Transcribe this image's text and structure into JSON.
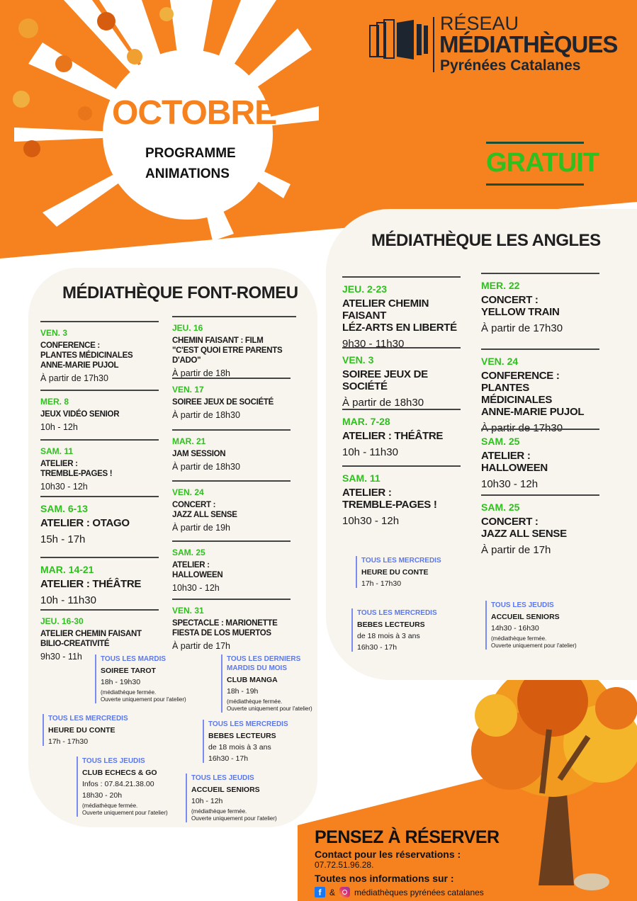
{
  "colors": {
    "orange": "#f5821f",
    "green": "#2fbf1f",
    "blue": "#5a78f0",
    "cream": "#f8f4ee",
    "dark": "#1c2530"
  },
  "logo": {
    "line1": "RÉSEAU",
    "line2": "MÉDIATHÈQUES",
    "line3": "Pyrénées Catalanes"
  },
  "header": {
    "month": "OCTOBRE",
    "subtitle": "PROGRAMME\nANIMATIONS",
    "free": "GRATUIT"
  },
  "font_romeu": {
    "title": "MÉDIATHÈQUE FONT-ROMEU",
    "events": [
      {
        "date": "VEN. 3",
        "title": "CONFERENCE :\nPLANTES MÉDICINALES\nANNE-MARIE PUJOL",
        "time": "À partir de 17h30"
      },
      {
        "date": "MER. 8",
        "title": "JEUX VIDÉO SENIOR",
        "time": "10h - 12h"
      },
      {
        "date": "SAM. 11",
        "title": "ATELIER :\nTREMBLE-PAGES !",
        "time": "10h30 - 12h"
      },
      {
        "date": "SAM. 6-13",
        "title": "ATELIER : OTAGO",
        "time": "15h - 17h"
      },
      {
        "date": "MAR. 14-21",
        "title": "ATELIER : THÉÂTRE",
        "time": "10h - 11h30"
      },
      {
        "date": "JEU. 16-30",
        "title": "ATELIER CHEMIN FAISANT\nBILIO-CREATIVITÉ",
        "time": "9h30 - 11h"
      },
      {
        "date": "JEU. 16",
        "title": "CHEMIN FAISANT : FILM\n\"C'EST QUOI ETRE PARENTS D'ADO\"",
        "time": "À partir de 18h"
      },
      {
        "date": "VEN. 17",
        "title": "SOIREE JEUX DE SOCIÉTÉ",
        "time": "À partir de 18h30"
      },
      {
        "date": "MAR. 21",
        "title": "JAM SESSION",
        "time": "À partir de 18h30"
      },
      {
        "date": "VEN. 24",
        "title": "CONCERT :\nJAZZ ALL SENSE",
        "time": "À partir de 19h"
      },
      {
        "date": "SAM. 25",
        "title": "ATELIER :\nHALLOWEEN",
        "time": "10h30 - 12h"
      },
      {
        "date": "VEN. 31",
        "title": "SPECTACLE : MARIONETTE\nFIESTA DE LOS MUERTOS",
        "time": "À partir de 17h"
      }
    ],
    "recurring": [
      {
        "label": "TOUS LES MARDIS",
        "title": "SOIREE TAROT",
        "time": "18h - 19h30",
        "note": "(médiathèque fermée.\nOuverte uniquement pour l'atelier)"
      },
      {
        "label": "TOUS LES DERNIERS\nMARDIS DU MOIS",
        "title": "CLUB MANGA",
        "time": "18h - 19h",
        "note": "(médiathèque fermée.\nOuverte uniquement pour l'atelier)"
      },
      {
        "label": "TOUS LES MERCREDIS",
        "title": "HEURE DU CONTE",
        "time": "17h - 17h30"
      },
      {
        "label": "TOUS LES MERCREDIS",
        "title": "BEBES LECTEURS",
        "info": "de 18 mois à 3 ans",
        "time": "16h30 - 17h"
      },
      {
        "label": "TOUS LES JEUDIS",
        "title": "CLUB ECHECS & GO",
        "info": "Infos : 07.84.21.38.00",
        "time": "18h30 - 20h",
        "note": "(médiathèque fermée.\nOuverte uniquement pour l'atelier)"
      },
      {
        "label": "TOUS LES JEUDIS",
        "title": "ACCUEIL SENIORS",
        "time": "10h - 12h",
        "note": "(médiathèque fermée.\nOuverte uniquement pour l'atelier)"
      }
    ]
  },
  "les_angles": {
    "title": "MÉDIATHÈQUE LES ANGLES",
    "events": [
      {
        "date": "JEU. 2-23",
        "title": "ATELIER CHEMIN FAISANT\nLÉZ-ARTS EN LIBERTÉ",
        "time": "9h30 - 11h30"
      },
      {
        "date": "VEN. 3",
        "title": "SOIREE JEUX DE SOCIÉTÉ",
        "time": "À partir de 18h30"
      },
      {
        "date": "MAR. 7-28",
        "title": "ATELIER : THÉÂTRE",
        "time": "10h - 11h30"
      },
      {
        "date": "SAM. 11",
        "title": "ATELIER :\nTREMBLE-PAGES !",
        "time": "10h30 - 12h"
      },
      {
        "date": "MER. 22",
        "title": "CONCERT :\nYELLOW TRAIN",
        "time": "À partir de 17h30"
      },
      {
        "date": "VEN. 24",
        "title": "CONFERENCE :\nPLANTES MÉDICINALES\nANNE-MARIE PUJOL",
        "time": "À partir de 17h30"
      },
      {
        "date": "SAM. 25",
        "title": "ATELIER :\nHALLOWEEN",
        "time": "10h30 - 12h"
      },
      {
        "date": "SAM. 25",
        "title": "CONCERT :\nJAZZ ALL SENSE",
        "time": "À partir de 17h"
      }
    ],
    "recurring": [
      {
        "label": "TOUS LES MERCREDIS",
        "title": "HEURE DU CONTE",
        "time": "17h - 17h30"
      },
      {
        "label": "TOUS LES MERCREDIS",
        "title": "BEBES LECTEURS",
        "info": "de 18 mois à 3 ans",
        "time": "16h30 - 17h"
      },
      {
        "label": "TOUS LES JEUDIS",
        "title": "ACCUEIL SENIORS",
        "time": "14h30 - 16h30",
        "note": "(médiathèque fermée.\nOuverte uniquement pour l'atelier)"
      }
    ]
  },
  "footer": {
    "reserve": "PENSEZ À RÉSERVER",
    "contact_label": "Contact pour les réservations :",
    "phone": "07.72.51.96.28.",
    "info_label": "Toutes nos informations sur :",
    "amp": "&",
    "social": "médiathèques pyrénées catalanes",
    "icons": [
      "facebook-icon",
      "instagram-icon"
    ]
  }
}
